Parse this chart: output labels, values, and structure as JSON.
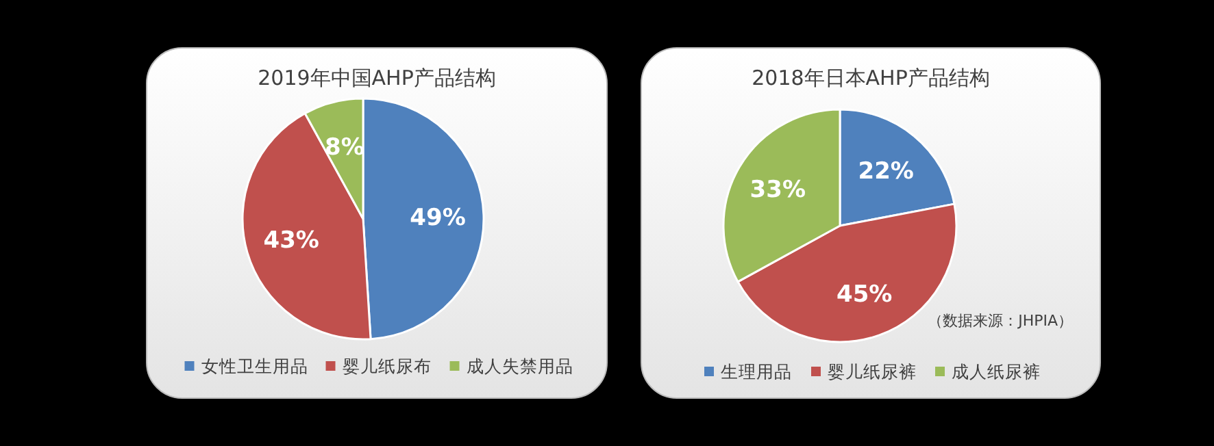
{
  "chart_data": [
    {
      "type": "pie",
      "title": "2019年中国AHP产品结构",
      "categories": [
        "女性卫生用品",
        "婴儿纸尿布",
        "成人失禁用品"
      ],
      "values": [
        49,
        43,
        8
      ],
      "value_labels": [
        "49%",
        "43%",
        "8%"
      ],
      "colors": [
        "#4f81bd",
        "#c0504d",
        "#9bbb59"
      ],
      "legend": "bottom"
    },
    {
      "type": "pie",
      "title": "2018年日本AHP产品结构",
      "categories": [
        "生理用品",
        "婴儿纸尿裤",
        "成人纸尿裤"
      ],
      "values": [
        22,
        45,
        33
      ],
      "value_labels": [
        "22%",
        "45%",
        "33%"
      ],
      "colors": [
        "#4f81bd",
        "#c0504d",
        "#9bbb59"
      ],
      "legend": "bottom",
      "annotations": [
        "（数据来源：JHPIA）"
      ]
    }
  ]
}
